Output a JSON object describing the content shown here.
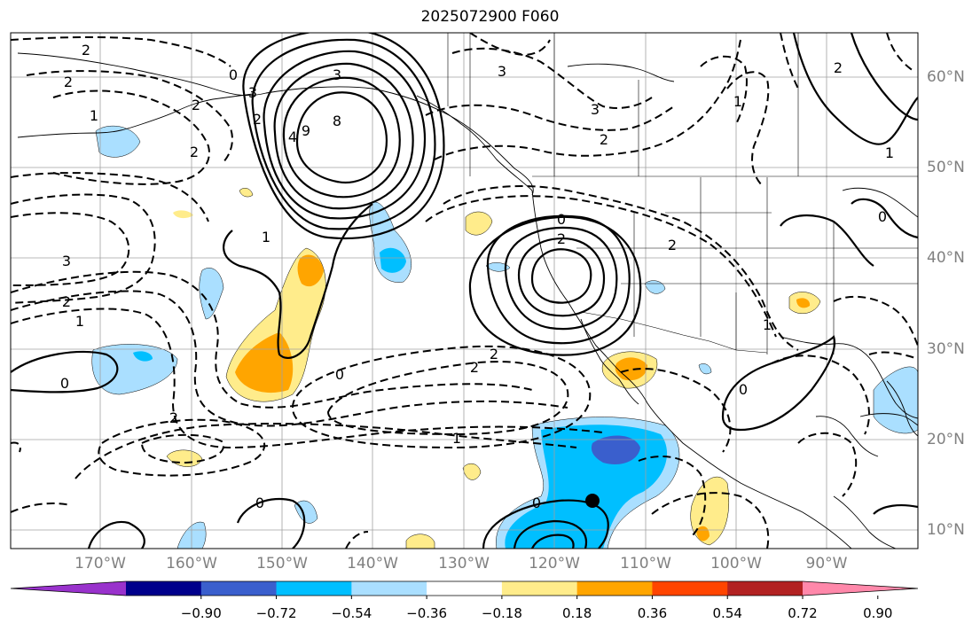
{
  "title": "2025072900 F060",
  "lon_labels": [
    "170°W",
    "160°W",
    "150°W",
    "140°W",
    "130°W",
    "120°W",
    "110°W",
    "100°W",
    "90°W"
  ],
  "lat_labels": [
    "60°N",
    "50°N",
    "40°N",
    "30°N",
    "20°N",
    "10°N"
  ],
  "colorbar": {
    "ticks": [
      "−0.90",
      "−0.72",
      "−0.54",
      "−0.36",
      "−0.18",
      "0.18",
      "0.36",
      "0.54",
      "0.72",
      "0.90"
    ],
    "colors": [
      "#9932cc",
      "#00008b",
      "#3a5fcd",
      "#00bfff",
      "#aadfff",
      "#ffffff",
      "#ffec8b",
      "#ffa500",
      "#ff4500",
      "#b22222",
      "#ff88aa"
    ]
  },
  "contour_labels": [
    "2",
    "2",
    "1",
    "2",
    "2",
    "3",
    "8",
    "9",
    "4",
    "3",
    "1",
    "0",
    "2",
    "2",
    "2",
    "0",
    "0",
    "1",
    "2",
    "3",
    "3",
    "2",
    "2",
    "1",
    "3",
    "2",
    "1",
    "0",
    "0",
    "0",
    "2",
    "1",
    "1",
    "2",
    "0",
    "0"
  ],
  "station_marker": "black-dot"
}
